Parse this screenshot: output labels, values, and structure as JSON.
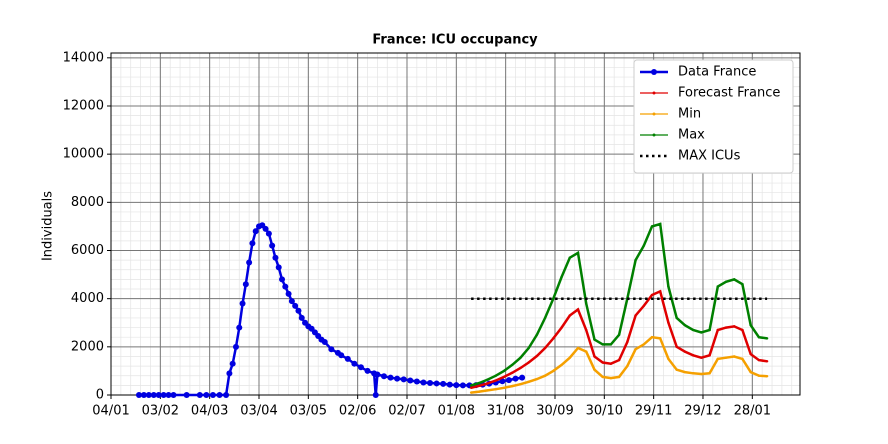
{
  "chart_data": {
    "type": "line",
    "title": "France: ICU occupancy",
    "ylabel": "Individuals",
    "xlim": [
      0,
      419
    ],
    "ylim": [
      0,
      14200
    ],
    "xticks": [
      {
        "value": 0,
        "label": "04/01"
      },
      {
        "value": 30,
        "label": "03/02"
      },
      {
        "value": 60,
        "label": "04/03"
      },
      {
        "value": 90,
        "label": "03/04"
      },
      {
        "value": 120,
        "label": "03/05"
      },
      {
        "value": 150,
        "label": "02/06"
      },
      {
        "value": 180,
        "label": "02/07"
      },
      {
        "value": 210,
        "label": "01/08"
      },
      {
        "value": 240,
        "label": "31/08"
      },
      {
        "value": 270,
        "label": "30/09"
      },
      {
        "value": 300,
        "label": "30/10"
      },
      {
        "value": 330,
        "label": "29/11"
      },
      {
        "value": 360,
        "label": "29/12"
      },
      {
        "value": 390,
        "label": "28/01"
      }
    ],
    "yticks": [
      0,
      2000,
      4000,
      6000,
      8000,
      10000,
      12000,
      14000
    ],
    "grid": true,
    "minor_grid": true,
    "legend": "upper right",
    "series": [
      {
        "name": "Data France",
        "color": "#0000e0",
        "marker": "circle",
        "width": 2.5,
        "x": [
          17,
          20,
          23,
          26,
          29,
          32,
          35,
          38,
          46,
          54,
          58,
          62,
          66,
          70,
          72,
          74,
          76,
          78,
          80,
          82,
          84,
          86,
          88,
          90,
          92,
          94,
          96,
          98,
          100,
          102,
          104,
          106,
          108,
          110,
          112,
          114,
          116,
          118,
          120,
          122,
          124,
          126,
          128,
          130,
          134,
          138,
          140,
          144,
          148,
          152,
          156,
          160,
          161,
          162,
          166,
          170,
          174,
          178,
          182,
          186,
          190,
          194,
          198,
          202,
          206,
          210,
          214,
          218,
          222,
          226,
          230,
          234,
          238,
          242,
          246,
          250
        ],
        "values": [
          0,
          0,
          0,
          0,
          0,
          0,
          0,
          0,
          0,
          0,
          0,
          0,
          0,
          0,
          900,
          1300,
          2000,
          2800,
          3800,
          4600,
          5500,
          6300,
          6800,
          7000,
          7050,
          6900,
          6700,
          6200,
          5700,
          5300,
          4800,
          4500,
          4200,
          3900,
          3700,
          3500,
          3200,
          3000,
          2850,
          2750,
          2600,
          2450,
          2300,
          2200,
          1900,
          1750,
          1650,
          1500,
          1300,
          1150,
          1000,
          900,
          0,
          850,
          780,
          720,
          680,
          650,
          600,
          560,
          520,
          500,
          480,
          460,
          430,
          410,
          400,
          400,
          410,
          430,
          470,
          520,
          570,
          620,
          680,
          720
        ]
      },
      {
        "name": "Forecast France",
        "color": "#e00000",
        "marker": "point",
        "width": 2.5,
        "x": [
          219,
          224,
          229,
          234,
          239,
          244,
          249,
          254,
          259,
          264,
          269,
          274,
          279,
          284,
          289,
          294,
          299,
          304,
          309,
          314,
          319,
          324,
          329,
          334,
          339,
          344,
          349,
          354,
          359,
          364,
          369,
          374,
          379,
          384,
          389,
          394,
          399
        ],
        "values": [
          300,
          380,
          480,
          600,
          750,
          920,
          1120,
          1350,
          1620,
          1950,
          2350,
          2800,
          3300,
          3550,
          2700,
          1600,
          1350,
          1300,
          1450,
          2200,
          3300,
          3700,
          4150,
          4300,
          3000,
          2000,
          1800,
          1650,
          1550,
          1650,
          2700,
          2800,
          2850,
          2700,
          1700,
          1450,
          1400
        ]
      },
      {
        "name": "Min",
        "color": "#f5a000",
        "marker": "point",
        "width": 2.5,
        "x": [
          219,
          224,
          229,
          234,
          239,
          244,
          249,
          254,
          259,
          264,
          269,
          274,
          279,
          284,
          289,
          294,
          299,
          304,
          309,
          314,
          319,
          324,
          329,
          334,
          339,
          344,
          349,
          354,
          359,
          364,
          369,
          374,
          379,
          384,
          389,
          394,
          399
        ],
        "values": [
          100,
          140,
          190,
          240,
          300,
          370,
          450,
          550,
          660,
          800,
          1000,
          1250,
          1550,
          1950,
          1800,
          1050,
          750,
          700,
          750,
          1200,
          1900,
          2100,
          2400,
          2350,
          1500,
          1050,
          950,
          900,
          870,
          900,
          1500,
          1550,
          1600,
          1500,
          950,
          800,
          780
        ]
      },
      {
        "name": "Max",
        "color": "#008000",
        "marker": "point",
        "width": 2.5,
        "x": [
          219,
          224,
          229,
          234,
          239,
          244,
          249,
          254,
          259,
          264,
          269,
          274,
          279,
          284,
          289,
          294,
          299,
          304,
          309,
          314,
          319,
          324,
          329,
          334,
          339,
          344,
          349,
          354,
          359,
          364,
          369,
          374,
          379,
          384,
          389,
          394,
          399
        ],
        "values": [
          400,
          500,
          640,
          800,
          1000,
          1250,
          1550,
          1950,
          2500,
          3200,
          4000,
          4900,
          5700,
          5900,
          3800,
          2300,
          2100,
          2100,
          2500,
          4000,
          5600,
          6200,
          7000,
          7100,
          4500,
          3200,
          2900,
          2700,
          2600,
          2700,
          4500,
          4700,
          4800,
          4600,
          2900,
          2400,
          2350
        ]
      },
      {
        "name": "MAX ICUs",
        "color": "#000000",
        "dash": "dotted",
        "width": 2.5,
        "x": [
          219,
          399
        ],
        "values": [
          4000,
          4000
        ]
      }
    ]
  }
}
